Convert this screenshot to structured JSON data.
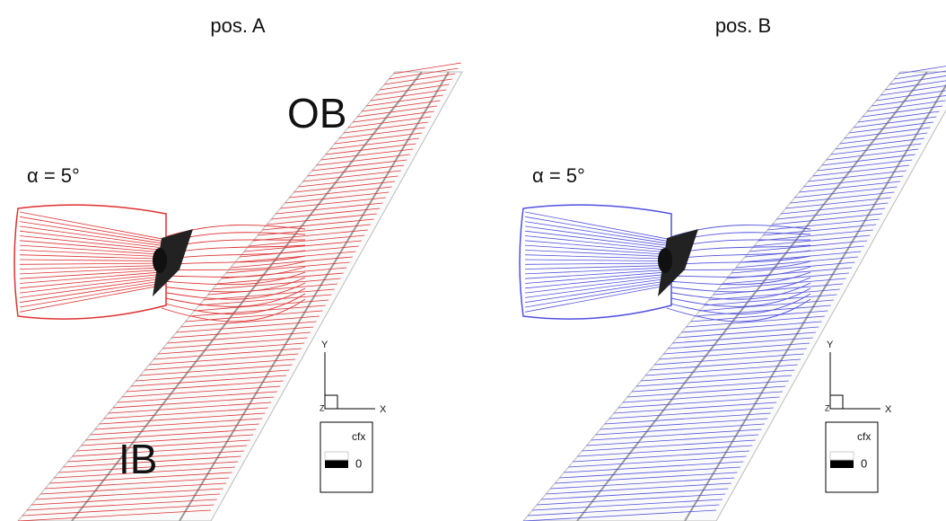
{
  "panels": [
    {
      "title": "pos. A",
      "angle_label": "α = 5°",
      "region_labels": [
        "OB",
        "IB"
      ],
      "color": "#e03030",
      "axes": {
        "y": "Y",
        "x": "X",
        "z": "Z"
      },
      "legend": {
        "title": "cfx",
        "value_label": "0"
      }
    },
    {
      "title": "pos. B",
      "angle_label": "α = 5°",
      "region_labels": [],
      "color": "#5050e0",
      "axes": {
        "y": "Y",
        "x": "X",
        "z": "Z"
      },
      "legend": {
        "title": "cfx",
        "value_label": "0"
      }
    }
  ]
}
